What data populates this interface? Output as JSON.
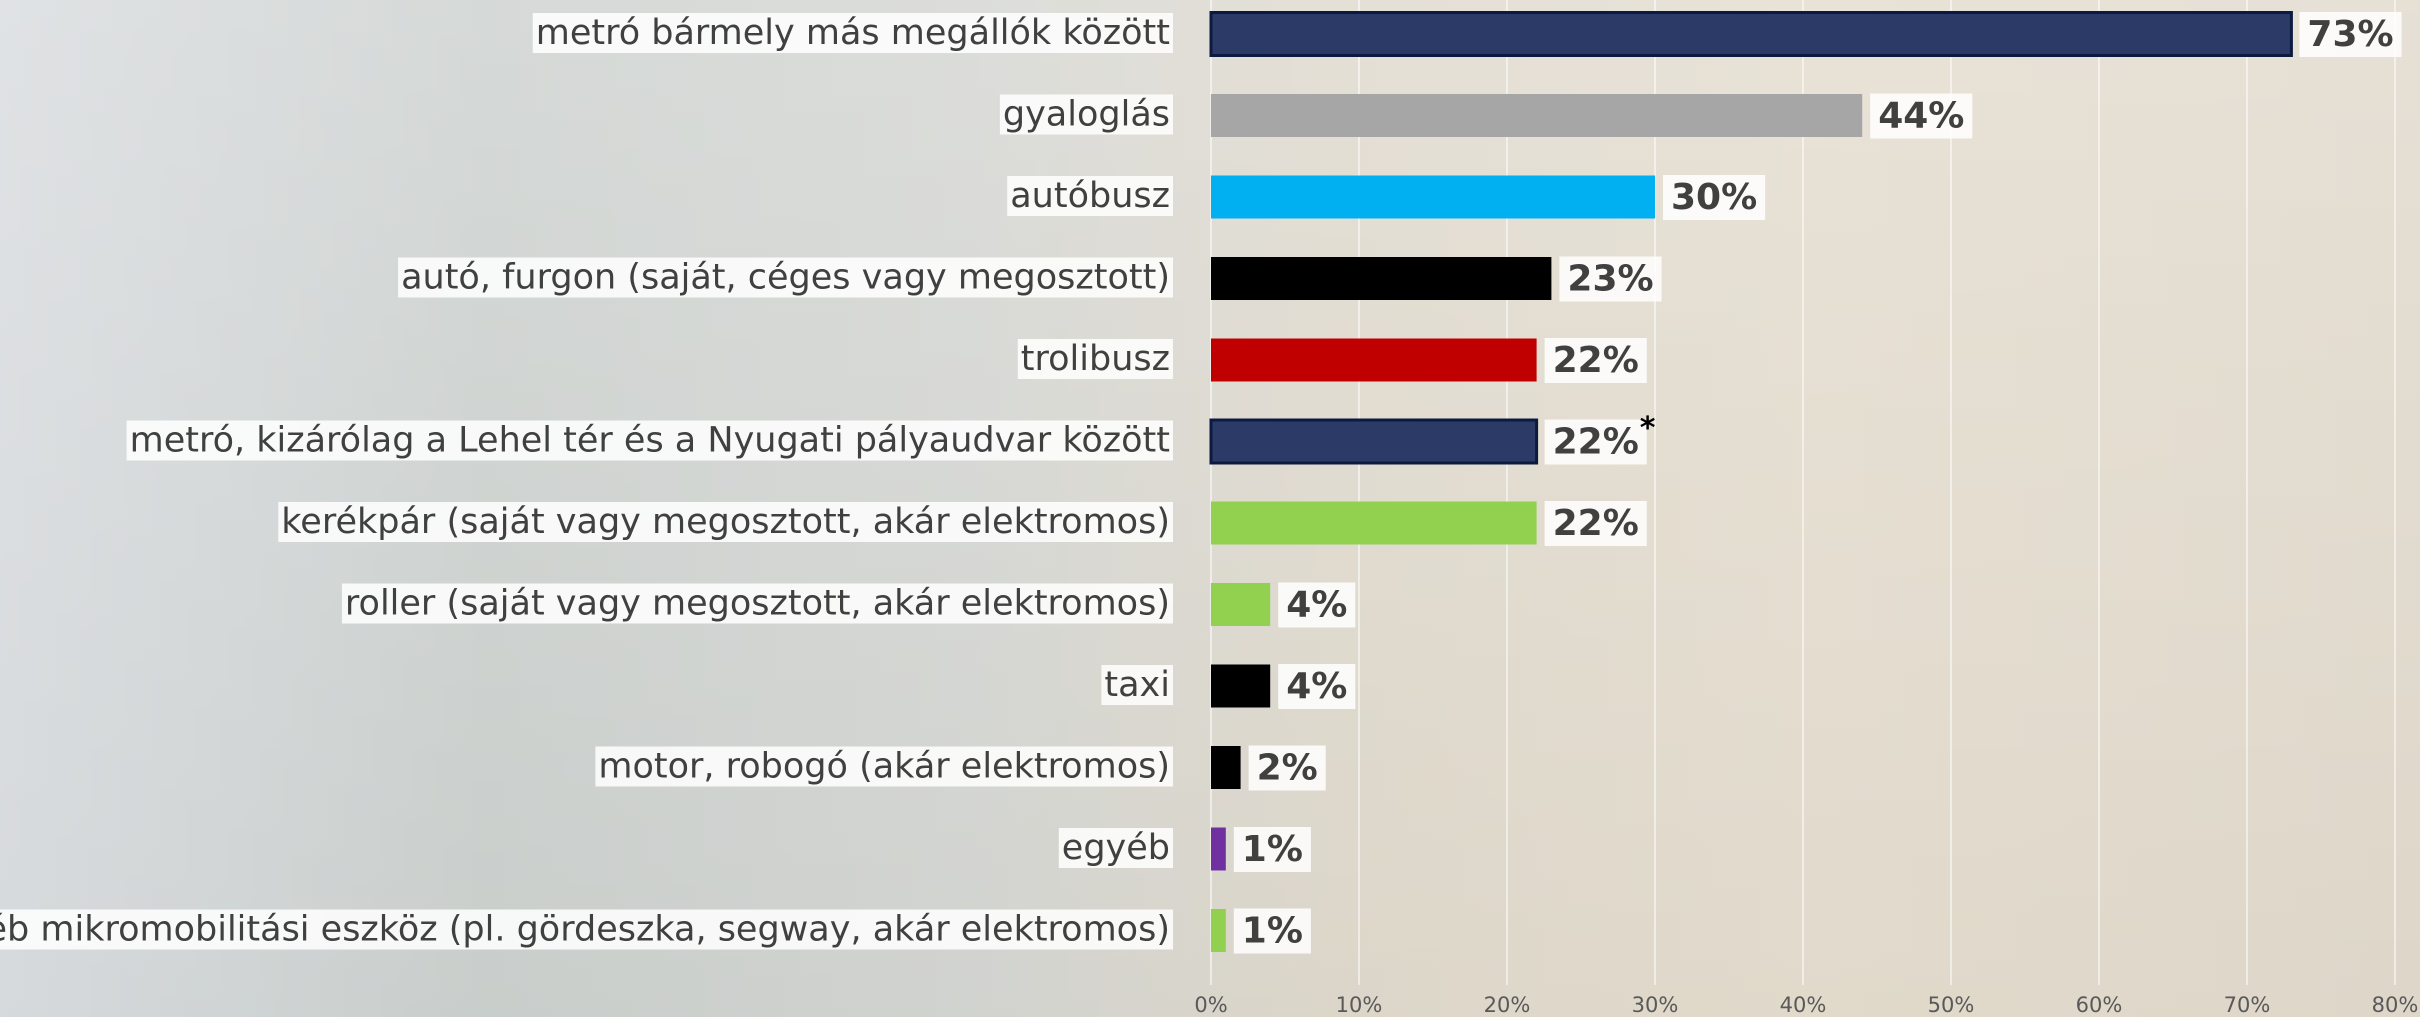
{
  "chart_data": {
    "type": "bar",
    "orientation": "horizontal",
    "categories": [
      "metró bármely más megállók között",
      "gyaloglás",
      "autóbusz",
      "autó, furgon (saját, céges vagy megosztott)",
      "trolibusz",
      "metró, kizárólag a Lehel tér és a Nyugati pályaudvar között",
      "kerékpár (saját vagy megosztott, akár elektromos)",
      "roller (saját vagy megosztott, akár elektromos)",
      "taxi",
      "motor, robogó (akár elektromos)",
      "egyéb",
      "egyéb mikromobilitási eszköz (pl. gördeszka, segway, akár elektromos)"
    ],
    "values": [
      73,
      44,
      30,
      23,
      22,
      22,
      22,
      4,
      4,
      2,
      1,
      1
    ],
    "value_labels": [
      "73%",
      "44%",
      "30%",
      "23%",
      "22%",
      "22%",
      "22%",
      "4%",
      "4%",
      "2%",
      "1%",
      "1%"
    ],
    "colors": [
      "#2b3a67",
      "#a6a6a6",
      "#00b0f0",
      "#000000",
      "#c00000",
      "#2b3a67",
      "#92d050",
      "#92d050",
      "#000000",
      "#000000",
      "#7030a0",
      "#92d050"
    ],
    "xlim": [
      0,
      80
    ],
    "xticks": [
      {
        "value": 0,
        "label": "0%"
      },
      {
        "value": 10,
        "label": "10%"
      },
      {
        "value": 20,
        "label": "20%"
      },
      {
        "value": 30,
        "label": "30%"
      },
      {
        "value": 40,
        "label": "40%"
      },
      {
        "value": 50,
        "label": "50%"
      },
      {
        "value": 60,
        "label": "60%"
      },
      {
        "value": 70,
        "label": "70%"
      },
      {
        "value": 80,
        "label": "80%"
      }
    ],
    "grid": true,
    "annotations": [
      {
        "text": "*",
        "category": "metró, kizárólag a Lehel tér és a Nyugati pályaudvar között"
      }
    ]
  }
}
